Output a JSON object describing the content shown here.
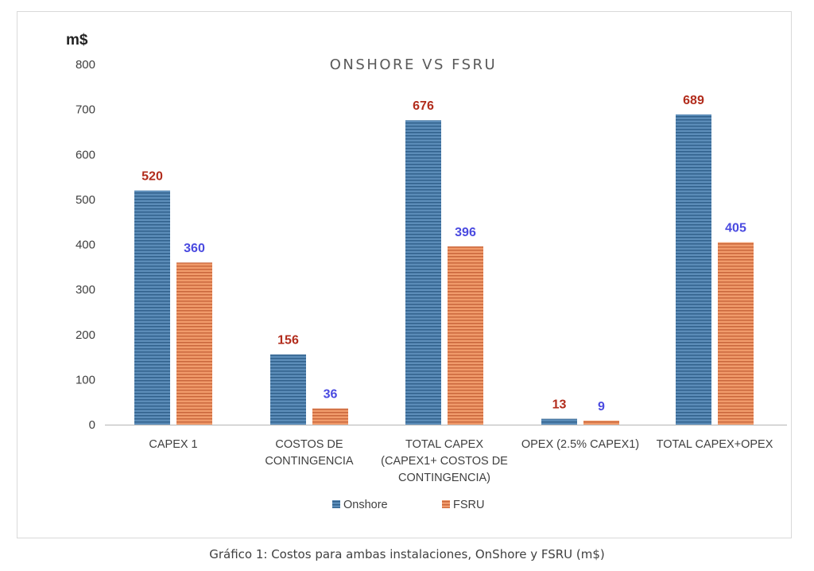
{
  "chart_data": {
    "type": "bar",
    "title": "ONSHORE VS FSRU",
    "ylabel": "m$",
    "xlabel": "",
    "ylim": [
      0,
      800
    ],
    "yticks": [
      0,
      100,
      200,
      300,
      400,
      500,
      600,
      700,
      800
    ],
    "categories": [
      [
        "CAPEX 1"
      ],
      [
        "COSTOS DE",
        "CONTINGENCIA"
      ],
      [
        "TOTAL CAPEX",
        "(CAPEX1+ COSTOS DE",
        "CONTINGENCIA)"
      ],
      [
        "OPEX (2.5% CAPEX1)"
      ],
      [
        "TOTAL CAPEX+OPEX"
      ]
    ],
    "series": [
      {
        "name": "Onshore",
        "values": [
          520,
          156,
          676,
          13,
          689
        ],
        "color": "#4a7ba7",
        "label_color": "#b22c1c"
      },
      {
        "name": "FSRU",
        "values": [
          360,
          36,
          396,
          9,
          405
        ],
        "color": "#e0814f",
        "label_color": "#4a4ae0"
      }
    ],
    "grid": false,
    "legend_position": "bottom"
  },
  "caption": "Gráfico 1: Costos para ambas instalaciones, OnShore y FSRU (m$)"
}
